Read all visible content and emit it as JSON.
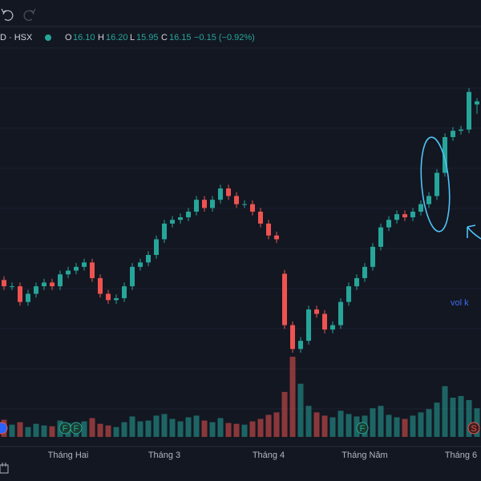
{
  "chart_data": {
    "type": "candlestick",
    "header": {
      "symbol": "D · HSX",
      "o_label": "O",
      "o": "16.10",
      "h_label": "H",
      "h": "16.20",
      "l_label": "L",
      "l": "15.95",
      "c_label": "C",
      "c": "16.15",
      "change": "−0.15 (−0.92%)"
    },
    "annotation": "vol k",
    "markers": [
      "F",
      "F",
      "F",
      "S"
    ],
    "up_color": "#26a69a",
    "down_color": "#ef5350",
    "categories": [
      null,
      null,
      null,
      null,
      null,
      null,
      null,
      null,
      "Tháng Hai",
      null,
      null,
      null,
      null,
      null,
      null,
      null,
      null,
      null,
      null,
      null,
      "Tháng 3",
      null,
      null,
      null,
      null,
      null,
      null,
      null,
      null,
      null,
      null,
      null,
      null,
      "Tháng 4",
      null,
      null,
      null,
      null,
      null,
      null,
      null,
      null,
      null,
      null,
      null,
      "Tháng Năm",
      null,
      null,
      null,
      null,
      null,
      null,
      null,
      null,
      null,
      null,
      null,
      "Tháng 6",
      null,
      null
    ],
    "open": [
      13.3,
      13.2,
      13.2,
      12.95,
      13.08,
      13.2,
      13.26,
      13.2,
      13.39,
      13.45,
      13.51,
      13.58,
      13.33,
      13.08,
      12.98,
      13.01,
      13.2,
      13.51,
      13.58,
      13.7,
      13.95,
      14.2,
      14.26,
      14.3,
      14.39,
      14.58,
      14.45,
      14.58,
      14.76,
      14.64,
      14.51,
      14.51,
      14.39,
      14.2,
      14.01,
      13.4,
      12.58,
      12.2,
      12.33,
      12.83,
      12.76,
      12.51,
      12.58,
      12.95,
      13.2,
      13.33,
      13.51,
      13.83,
      14.14,
      14.26,
      14.35,
      14.3,
      14.39,
      14.51,
      14.64,
      15.01,
      15.58,
      15.68,
      15.7,
      16.1
    ],
    "high": [
      13.36,
      13.26,
      13.26,
      13.14,
      13.26,
      13.32,
      13.32,
      13.45,
      13.51,
      13.57,
      13.64,
      13.64,
      13.39,
      13.14,
      13.07,
      13.26,
      13.57,
      13.64,
      13.76,
      14.01,
      14.26,
      14.32,
      14.36,
      14.45,
      14.64,
      14.64,
      14.64,
      14.82,
      14.82,
      14.7,
      14.57,
      14.57,
      14.45,
      14.26,
      14.07,
      13.46,
      12.64,
      12.39,
      12.89,
      12.89,
      12.82,
      12.64,
      13.01,
      13.26,
      13.39,
      13.57,
      13.89,
      14.2,
      14.32,
      14.41,
      14.41,
      14.45,
      14.57,
      14.7,
      15.07,
      15.64,
      15.74,
      15.76,
      16.36,
      16.2
    ],
    "low": [
      13.14,
      13.14,
      12.89,
      12.89,
      13.02,
      13.14,
      13.14,
      13.14,
      13.33,
      13.39,
      13.45,
      13.27,
      13.02,
      12.92,
      12.92,
      12.95,
      13.14,
      13.45,
      13.52,
      13.64,
      13.89,
      14.14,
      14.2,
      14.24,
      14.33,
      14.39,
      14.39,
      14.52,
      14.58,
      14.45,
      14.45,
      14.33,
      14.14,
      13.95,
      13.89,
      12.52,
      12.14,
      12.14,
      12.27,
      12.7,
      12.45,
      12.45,
      12.52,
      12.89,
      13.14,
      13.27,
      13.45,
      13.77,
      14.08,
      14.2,
      14.24,
      14.24,
      14.33,
      14.45,
      14.58,
      14.95,
      15.52,
      15.62,
      15.64,
      15.95
    ],
    "close": [
      13.2,
      13.2,
      12.95,
      13.08,
      13.2,
      13.26,
      13.2,
      13.39,
      13.45,
      13.51,
      13.58,
      13.33,
      13.08,
      12.98,
      13.01,
      13.2,
      13.51,
      13.58,
      13.7,
      13.95,
      14.2,
      14.26,
      14.3,
      14.39,
      14.58,
      14.45,
      14.58,
      14.76,
      14.64,
      14.51,
      14.51,
      14.39,
      14.2,
      14.01,
      13.95,
      12.58,
      12.2,
      12.33,
      12.83,
      12.76,
      12.51,
      12.58,
      12.95,
      13.2,
      13.33,
      13.51,
      13.83,
      14.14,
      14.26,
      14.35,
      14.3,
      14.39,
      14.51,
      14.64,
      15.01,
      15.58,
      15.68,
      15.7,
      16.3,
      16.15
    ],
    "volume": [
      2.1,
      1.5,
      1.8,
      1.2,
      1.6,
      1.4,
      1.3,
      2.0,
      1.7,
      1.5,
      1.9,
      2.3,
      1.6,
      1.4,
      1.2,
      1.8,
      2.5,
      1.9,
      2.0,
      2.6,
      2.8,
      2.2,
      1.9,
      2.4,
      2.6,
      2.0,
      1.8,
      2.3,
      1.7,
      1.6,
      1.5,
      1.9,
      2.2,
      2.7,
      3.0,
      5.5,
      9.8,
      6.5,
      3.8,
      3.0,
      2.6,
      2.4,
      3.2,
      2.8,
      2.5,
      2.6,
      3.5,
      3.8,
      2.7,
      2.4,
      2.2,
      2.6,
      3.0,
      3.4,
      4.2,
      6.2,
      4.8,
      5.0,
      4.5,
      3.5
    ]
  }
}
